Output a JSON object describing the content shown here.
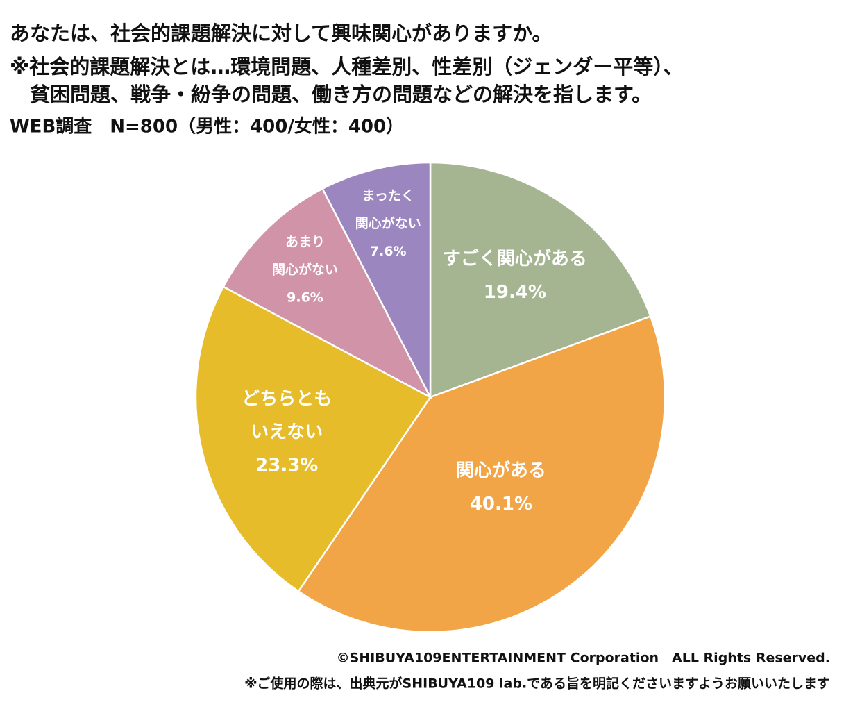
{
  "chart_data": {
    "type": "pie",
    "title": "あなたは、社会的課題解決に対して興味関心がありますか。",
    "subtitle": [
      "※社会的課題解決とは…環境問題、人種差別、性差別（ジェンダー平等）、",
      "　貧困問題、戦争・紛争の問題、働き方の問題などの解決を指します。"
    ],
    "survey_note": "WEB調査　N=800（男性：400/女性：400）",
    "categories": [
      [
        "すごく関心がある"
      ],
      [
        "関心がある"
      ],
      [
        "どちらとも",
        "いえない"
      ],
      [
        "あまり",
        "関心がない"
      ],
      [
        "まったく",
        "関心がない"
      ]
    ],
    "values": [
      19.4,
      40.1,
      23.3,
      9.6,
      7.6
    ],
    "value_labels": [
      "19.4%",
      "40.1%",
      "23.3%",
      "9.6%",
      "7.6%"
    ],
    "colors": [
      "#a6b591",
      "#f1a546",
      "#e6bc2b",
      "#d093a8",
      "#9c86c0"
    ],
    "footer": [
      "©SHIBUYA109ENTERTAINMENT Corporation　ALL Rights Reserved.",
      "※ご使用の際は、出典元がSHIBUYA109 lab.である旨を明記くださいますようお願いいたします"
    ]
  }
}
